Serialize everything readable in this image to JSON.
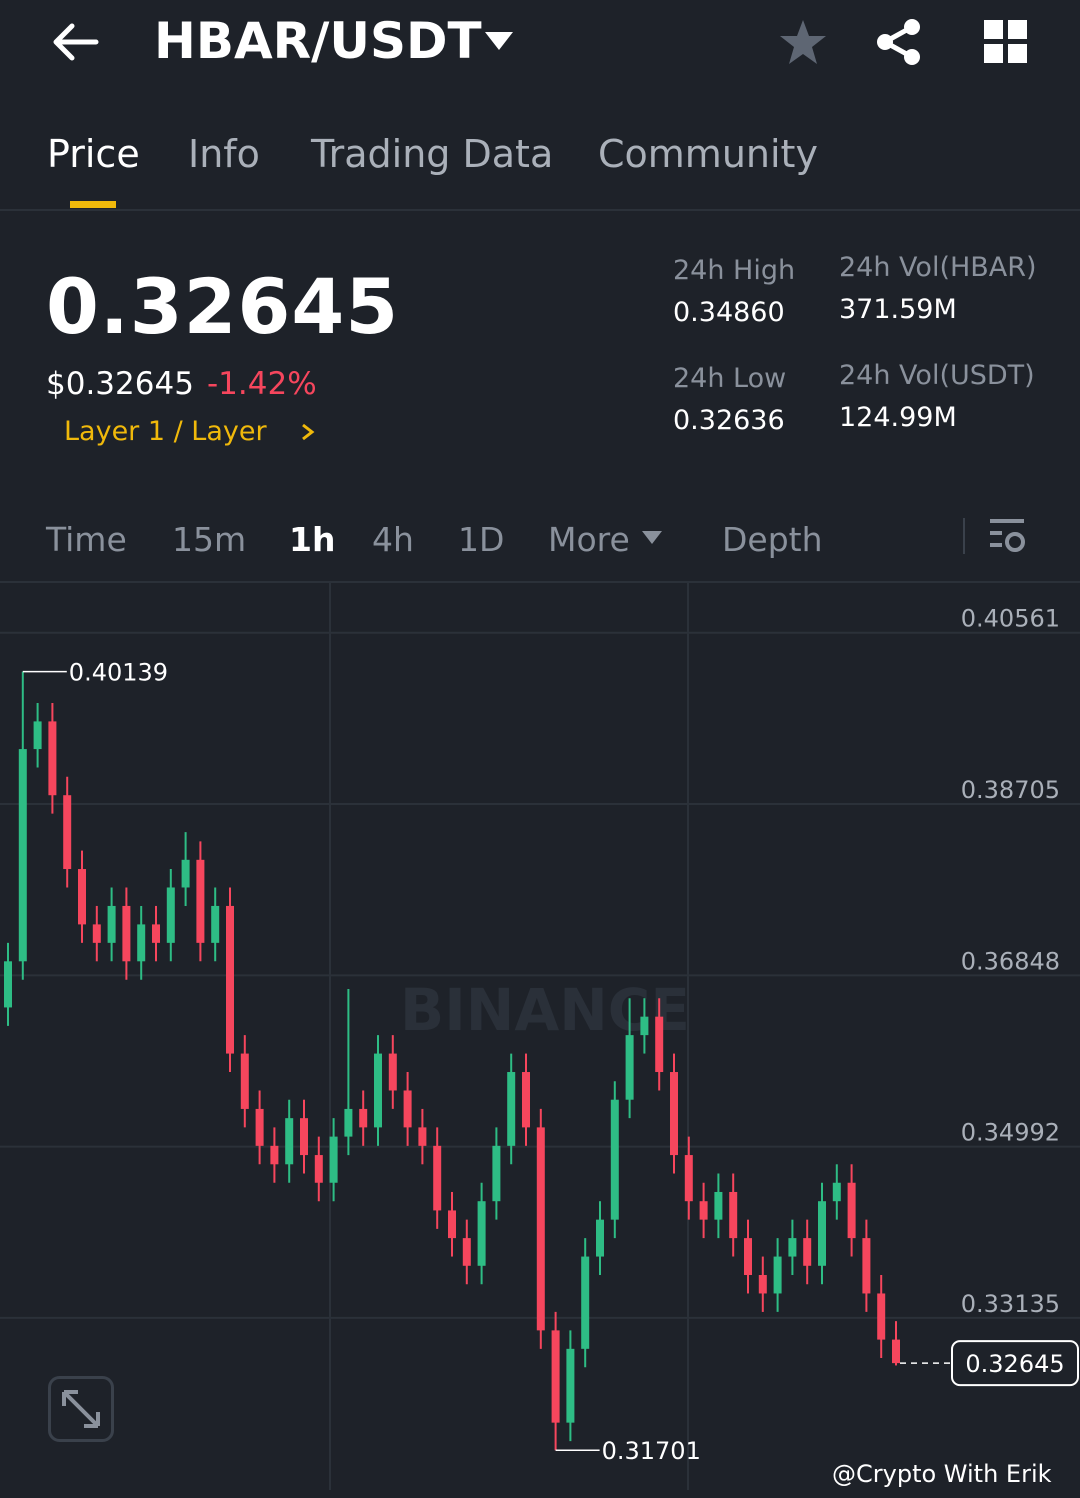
{
  "header": {
    "pair": "HBAR/USDT"
  },
  "tabs": [
    "Price",
    "Info",
    "Trading Data",
    "Community"
  ],
  "ticker": {
    "price": "0.32645",
    "usd_price": "$0.32645",
    "change": "-1.42%",
    "category": "Layer 1 / Layer"
  },
  "stats": [
    {
      "label": "24h High",
      "value": "0.34860"
    },
    {
      "label": "24h Vol(HBAR)",
      "value": "371.59M"
    },
    {
      "label": "24h Low",
      "value": "0.32636"
    },
    {
      "label": "24h Vol(USDT)",
      "value": "124.99M"
    }
  ],
  "intervals": [
    "Time",
    "15m",
    "1h",
    "4h",
    "1D",
    "More",
    "Depth"
  ],
  "chart_data": {
    "type": "candlestick",
    "watermark": "BINANCE",
    "up_color": "#2ebd85",
    "down_color": "#f6465d",
    "ylim": [
      0.3127,
      0.411
    ],
    "yticks": [
      0.40561,
      0.38705,
      0.36848,
      0.34992,
      0.33135
    ],
    "grid": true,
    "open": [
      0.365,
      0.37,
      0.393,
      0.396,
      0.388,
      0.38,
      0.374,
      0.372,
      0.376,
      0.37,
      0.374,
      0.372,
      0.378,
      0.381,
      0.372,
      0.376,
      0.36,
      0.354,
      0.35,
      0.348,
      0.353,
      0.349,
      0.346,
      0.351,
      0.354,
      0.352,
      0.36,
      0.356,
      0.352,
      0.35,
      0.343,
      0.34,
      0.337,
      0.344,
      0.35,
      0.358,
      0.352,
      0.33,
      0.32,
      0.328,
      0.338,
      0.342,
      0.355,
      0.362,
      0.364,
      0.358,
      0.349,
      0.344,
      0.342,
      0.345,
      0.34,
      0.336,
      0.334,
      0.338,
      0.34,
      0.337,
      0.344,
      0.346,
      0.34,
      0.334,
      0.329
    ],
    "high": [
      0.372,
      0.40139,
      0.398,
      0.398,
      0.39,
      0.382,
      0.376,
      0.378,
      0.378,
      0.376,
      0.376,
      0.38,
      0.384,
      0.383,
      0.378,
      0.378,
      0.362,
      0.356,
      0.352,
      0.355,
      0.355,
      0.351,
      0.353,
      0.367,
      0.356,
      0.362,
      0.362,
      0.358,
      0.354,
      0.352,
      0.345,
      0.342,
      0.346,
      0.352,
      0.36,
      0.36,
      0.354,
      0.332,
      0.33,
      0.34,
      0.344,
      0.357,
      0.366,
      0.366,
      0.366,
      0.36,
      0.351,
      0.346,
      0.347,
      0.347,
      0.342,
      0.338,
      0.34,
      0.342,
      0.342,
      0.346,
      0.348,
      0.348,
      0.342,
      0.336,
      0.331
    ],
    "low": [
      0.363,
      0.368,
      0.391,
      0.386,
      0.378,
      0.372,
      0.37,
      0.37,
      0.368,
      0.368,
      0.37,
      0.37,
      0.376,
      0.37,
      0.37,
      0.358,
      0.352,
      0.348,
      0.346,
      0.346,
      0.347,
      0.344,
      0.344,
      0.349,
      0.35,
      0.35,
      0.354,
      0.35,
      0.348,
      0.341,
      0.338,
      0.335,
      0.335,
      0.342,
      0.348,
      0.35,
      0.328,
      0.31701,
      0.318,
      0.326,
      0.336,
      0.34,
      0.353,
      0.36,
      0.356,
      0.347,
      0.342,
      0.34,
      0.34,
      0.338,
      0.334,
      0.332,
      0.332,
      0.336,
      0.335,
      0.335,
      0.342,
      0.338,
      0.332,
      0.327,
      0.3262
    ],
    "close": [
      0.37,
      0.393,
      0.396,
      0.388,
      0.38,
      0.374,
      0.372,
      0.376,
      0.37,
      0.374,
      0.372,
      0.378,
      0.381,
      0.372,
      0.376,
      0.36,
      0.354,
      0.35,
      0.348,
      0.353,
      0.349,
      0.346,
      0.351,
      0.354,
      0.352,
      0.36,
      0.356,
      0.352,
      0.35,
      0.343,
      0.34,
      0.337,
      0.344,
      0.35,
      0.358,
      0.352,
      0.33,
      0.32,
      0.328,
      0.338,
      0.342,
      0.355,
      0.362,
      0.364,
      0.358,
      0.349,
      0.344,
      0.342,
      0.345,
      0.34,
      0.336,
      0.334,
      0.338,
      0.34,
      0.337,
      0.344,
      0.346,
      0.34,
      0.334,
      0.329,
      0.32645
    ]
  },
  "footer": {
    "credit": "@Crypto With Erik"
  }
}
